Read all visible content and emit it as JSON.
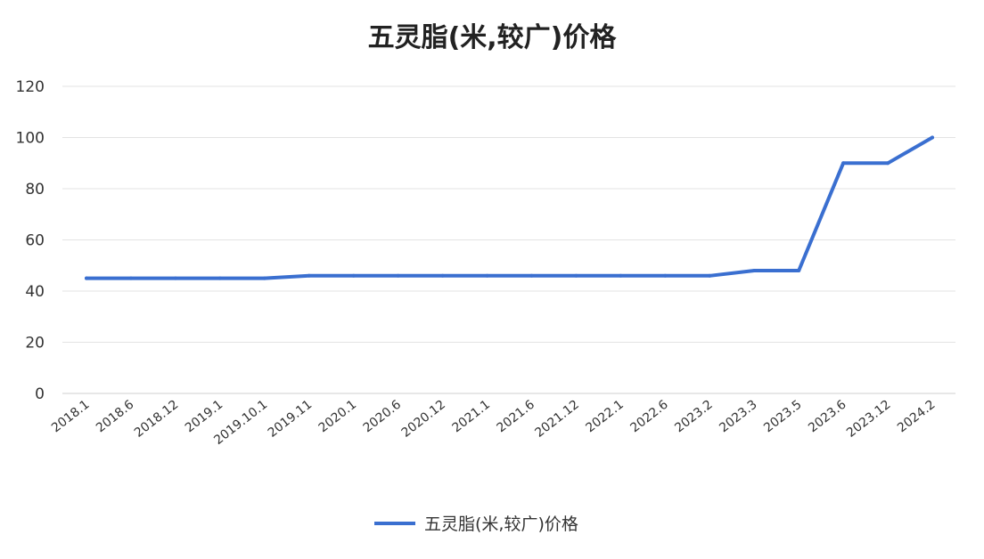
{
  "chart_data": {
    "type": "line",
    "title": "五灵脂(米,较广)价格",
    "xlabel": "",
    "ylabel": "",
    "ylim": [
      0,
      120
    ],
    "yticks": [
      0,
      20,
      40,
      60,
      80,
      100,
      120
    ],
    "grid": true,
    "legend_position": "bottom",
    "color": "#3a6fd0",
    "categories": [
      "2018.1",
      "2018.6",
      "2018.12",
      "2019.1",
      "2019.10.1",
      "2019.11",
      "2020.1",
      "2020.6",
      "2020.12",
      "2021.1",
      "2021.6",
      "2021.12",
      "2022.1",
      "2022.6",
      "2023.2",
      "2023.3",
      "2023.5",
      "2023.6",
      "2023.12",
      "2024.2"
    ],
    "series": [
      {
        "name": "五灵脂(米,较广)价格",
        "values": [
          45,
          45,
          45,
          45,
          45,
          46,
          46,
          46,
          46,
          46,
          46,
          46,
          46,
          46,
          46,
          48,
          48,
          90,
          90,
          100
        ]
      }
    ]
  }
}
